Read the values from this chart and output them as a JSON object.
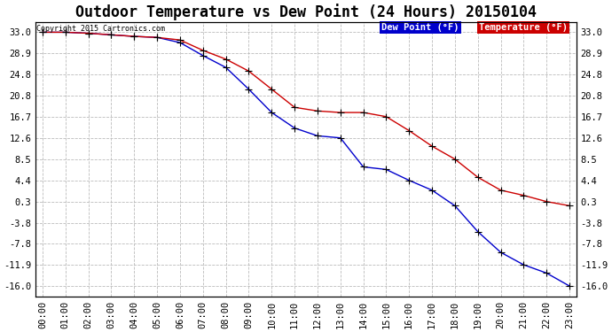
{
  "title": "Outdoor Temperature vs Dew Point (24 Hours) 20150104",
  "copyright_text": "Copyright 2015 Cartronics.com",
  "background_color": "#ffffff",
  "plot_bg_color": "#ffffff",
  "grid_color": "#bbbbbb",
  "x_labels": [
    "00:00",
    "01:00",
    "02:00",
    "03:00",
    "04:00",
    "05:00",
    "06:00",
    "07:00",
    "08:00",
    "09:00",
    "10:00",
    "11:00",
    "12:00",
    "13:00",
    "14:00",
    "15:00",
    "16:00",
    "17:00",
    "18:00",
    "19:00",
    "20:00",
    "21:00",
    "22:00",
    "23:00"
  ],
  "y_ticks": [
    33.0,
    28.9,
    24.8,
    20.8,
    16.7,
    12.6,
    8.5,
    4.4,
    0.3,
    -3.8,
    -7.8,
    -11.9,
    -16.0
  ],
  "ylim_min": -18.0,
  "ylim_max": 35.0,
  "temperature": [
    33.0,
    33.0,
    32.8,
    32.5,
    32.2,
    32.0,
    31.5,
    29.5,
    27.8,
    25.5,
    22.0,
    18.5,
    17.8,
    17.5,
    17.5,
    16.7,
    14.0,
    11.0,
    8.5,
    5.0,
    2.5,
    1.5,
    0.3,
    -0.5
  ],
  "dew_point": [
    33.0,
    33.0,
    32.8,
    32.5,
    32.2,
    32.0,
    31.0,
    28.5,
    26.2,
    22.0,
    17.5,
    14.5,
    13.0,
    12.6,
    7.0,
    6.5,
    4.4,
    2.5,
    -0.5,
    -5.5,
    -9.5,
    -11.9,
    -13.5,
    -16.0
  ],
  "temp_color": "#cc0000",
  "dew_color": "#0000cc",
  "legend_dew_bg": "#0000cc",
  "legend_temp_bg": "#cc0000",
  "legend_dew_label": "Dew Point (°F)",
  "legend_temp_label": "Temperature (°F)",
  "title_fontsize": 12,
  "axis_fontsize": 7.5,
  "marker": "+",
  "marker_size": 5,
  "marker_color": "black"
}
